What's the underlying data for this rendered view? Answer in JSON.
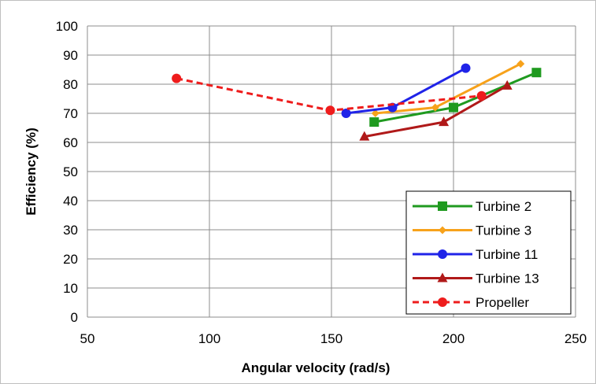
{
  "chart_data": {
    "type": "line",
    "title": "",
    "xlabel": "Angular velocity (rad/s)",
    "ylabel": "Efficiency (%)",
    "xlim": [
      50,
      250
    ],
    "ylim": [
      0,
      100
    ],
    "xticks": [
      50,
      100,
      150,
      200,
      250
    ],
    "yticks": [
      0,
      10,
      20,
      30,
      40,
      50,
      60,
      70,
      80,
      90,
      100
    ],
    "grid": true,
    "legend_position": "bottom-right",
    "series": [
      {
        "name": "Turbine 2",
        "color": "#1f9a1f",
        "marker": "square",
        "dash": false,
        "x": [
          167.5,
          200,
          234
        ],
        "y": [
          67,
          72,
          84
        ]
      },
      {
        "name": "Turbine 3",
        "color": "#f7a21b",
        "marker": "diamond",
        "dash": false,
        "x": [
          168,
          192.5,
          227.5
        ],
        "y": [
          70,
          72,
          87
        ]
      },
      {
        "name": "Turbine 11",
        "color": "#1f23e8",
        "marker": "circle",
        "dash": false,
        "x": [
          156,
          175,
          205
        ],
        "y": [
          70,
          72,
          85.5
        ]
      },
      {
        "name": "Turbine 13",
        "color": "#b01919",
        "marker": "triangle",
        "dash": false,
        "x": [
          163.5,
          196,
          222
        ],
        "y": [
          62,
          67,
          79.5
        ]
      },
      {
        "name": "Propeller",
        "color": "#ee1c1c",
        "marker": "circle",
        "dash": true,
        "x": [
          86.5,
          149.5,
          211.5
        ],
        "y": [
          82,
          71,
          76
        ]
      }
    ]
  }
}
